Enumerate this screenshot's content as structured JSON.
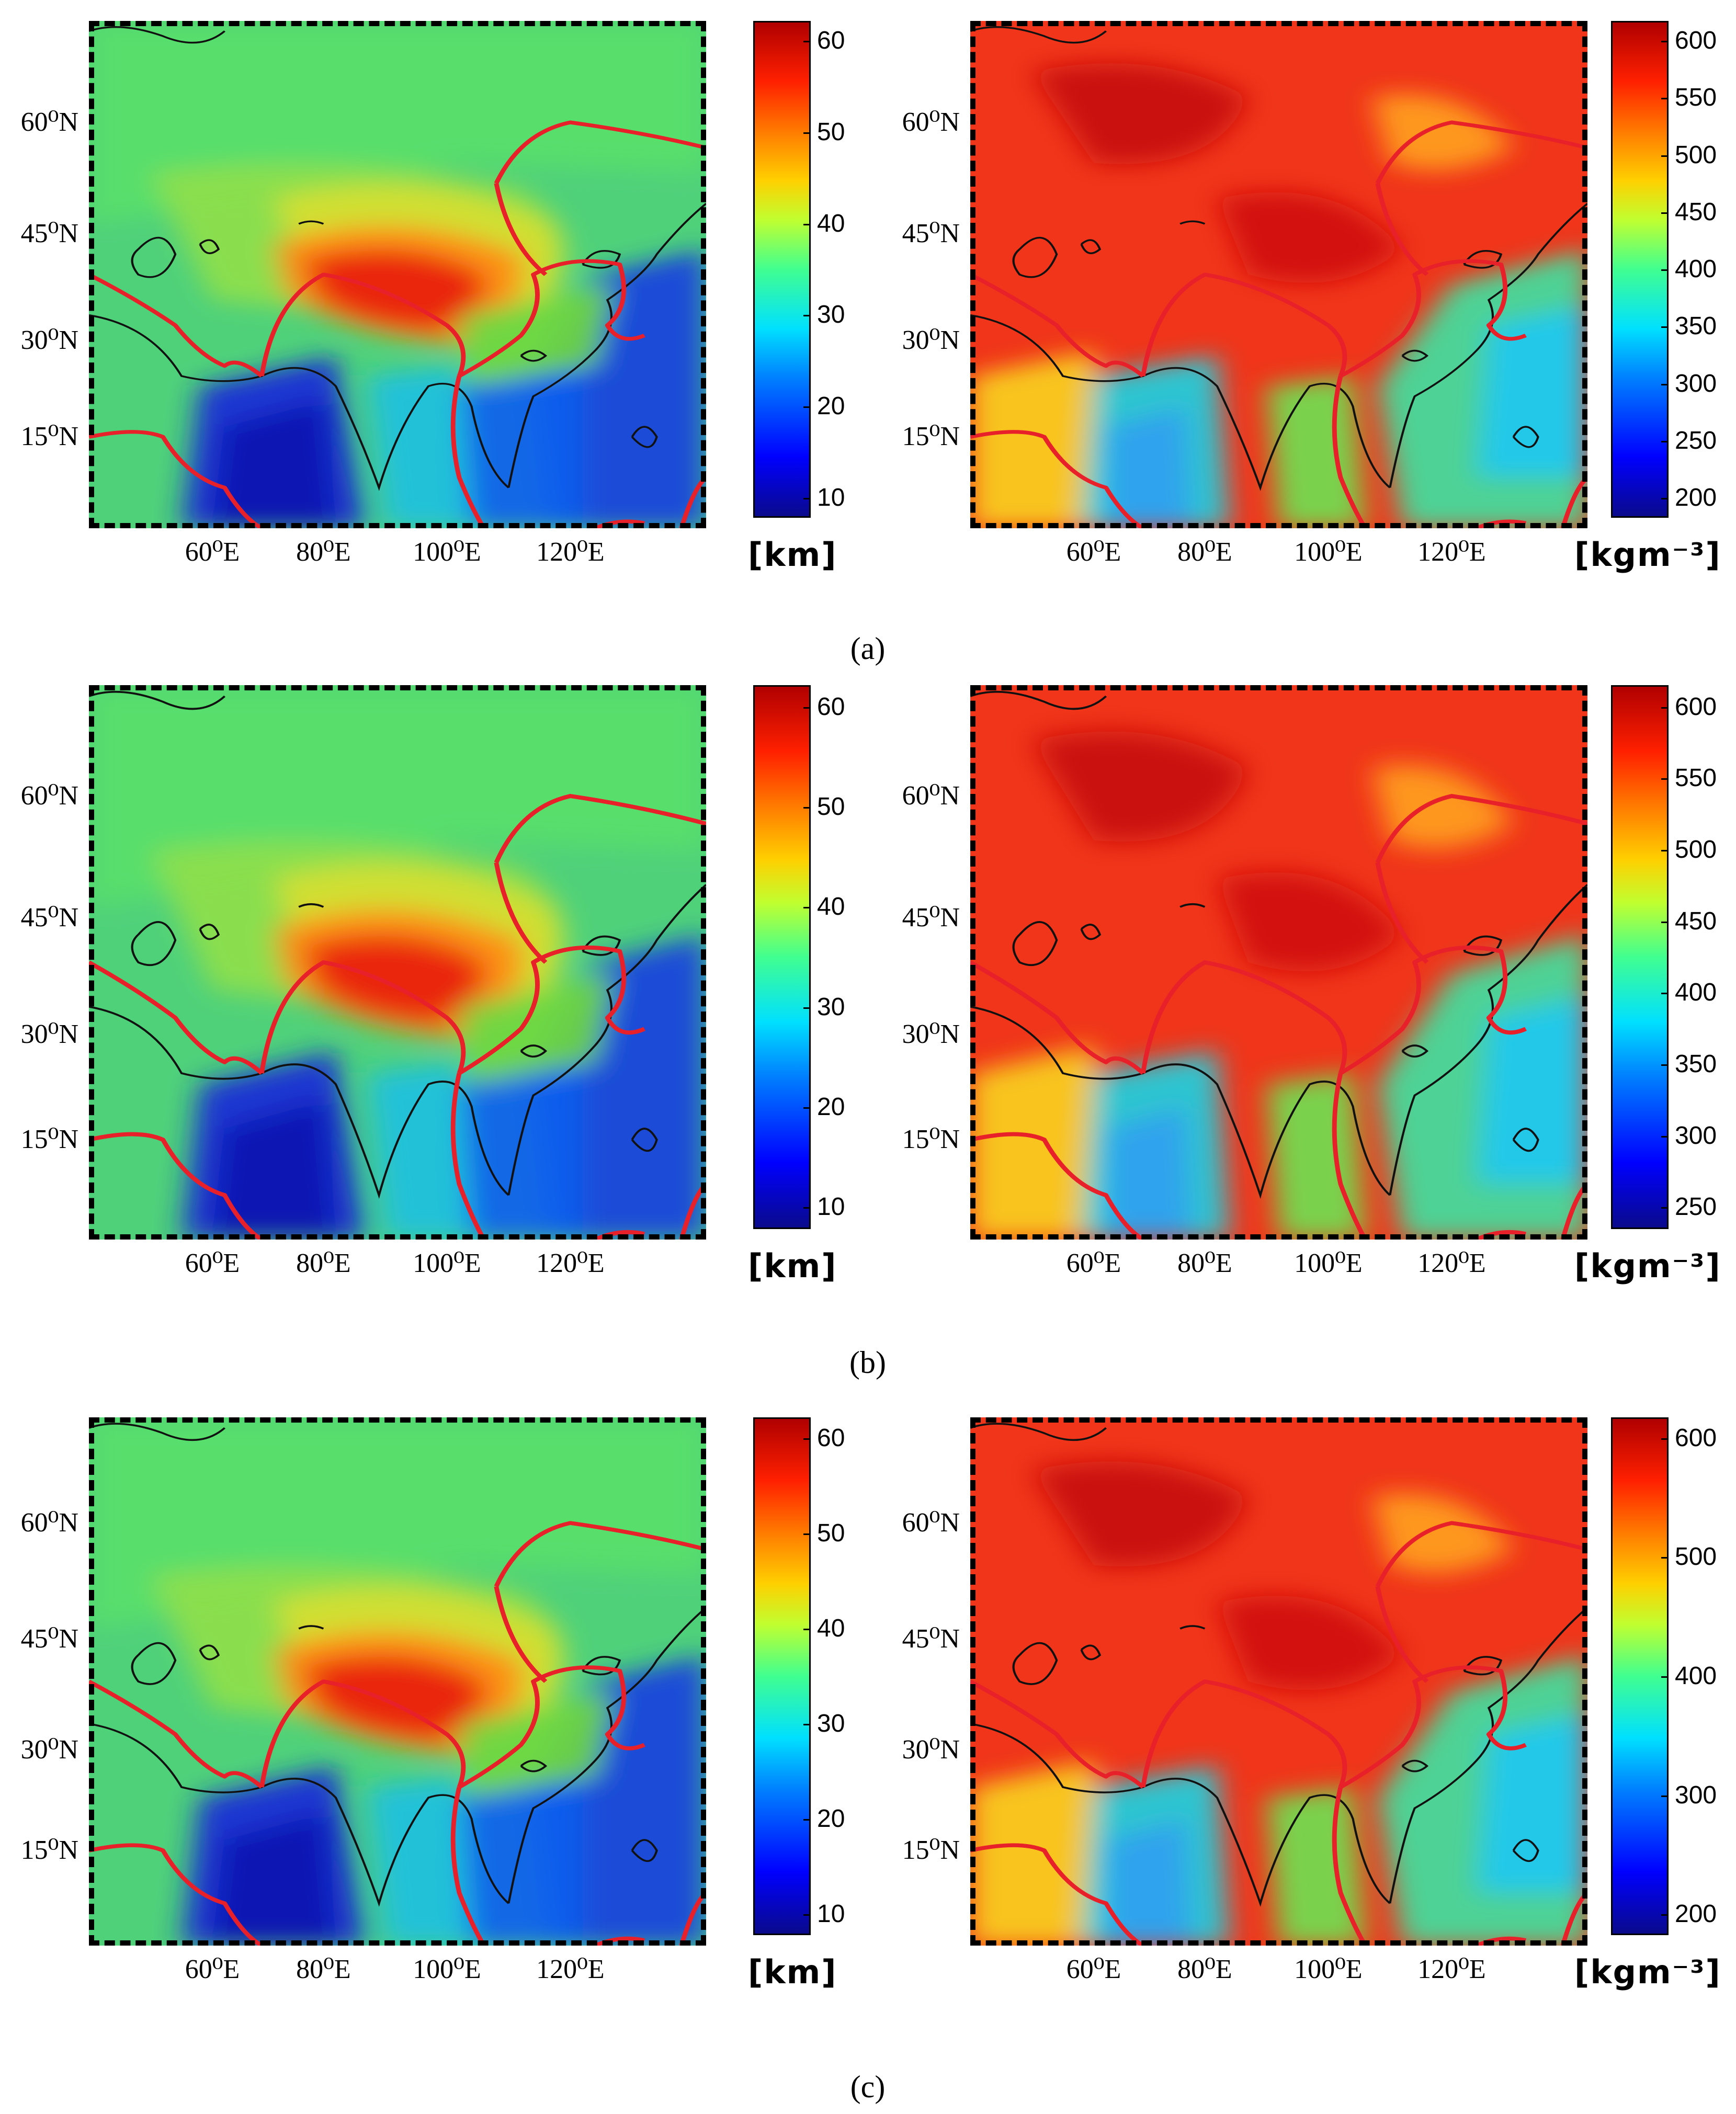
{
  "colors": {
    "plate_boundary": "#e8202a",
    "coastline": "#111111",
    "colormap": [
      "#0a0a8c",
      "#0000ff",
      "#0080ff",
      "#00e0ff",
      "#40ff90",
      "#c0ff30",
      "#ffd000",
      "#ff7a00",
      "#ff2000",
      "#b00000"
    ]
  },
  "axes": {
    "lat_labels": [
      "60⁰N",
      "45⁰N",
      "30⁰N",
      "15⁰N"
    ],
    "lon_labels": [
      "60⁰E",
      "80⁰E",
      "100⁰E",
      "120⁰E"
    ]
  },
  "panels": [
    {
      "caption": "(a)",
      "thickness_map": {
        "unit": "[km]",
        "ticks": [
          "60",
          "50",
          "40",
          "30",
          "20",
          "10"
        ]
      },
      "density_map": {
        "unit": "[kgm⁻³]",
        "ticks": [
          "600",
          "550",
          "500",
          "450",
          "400",
          "350",
          "300",
          "250",
          "200"
        ]
      }
    },
    {
      "caption": "(b)",
      "thickness_map": {
        "unit": "[km]",
        "ticks": [
          "60",
          "50",
          "40",
          "30",
          "20",
          "10"
        ]
      },
      "density_map": {
        "unit": "[kgm⁻³]",
        "ticks": [
          "600",
          "550",
          "500",
          "450",
          "400",
          "350",
          "300",
          "250"
        ]
      }
    },
    {
      "caption": "(c)",
      "thickness_map": {
        "unit": "[km]",
        "ticks": [
          "60",
          "50",
          "40",
          "30",
          "20",
          "10"
        ]
      },
      "density_map": {
        "unit": "[kgm⁻³]",
        "ticks": [
          "600",
          "500",
          "400",
          "300",
          "200"
        ]
      }
    }
  ]
}
